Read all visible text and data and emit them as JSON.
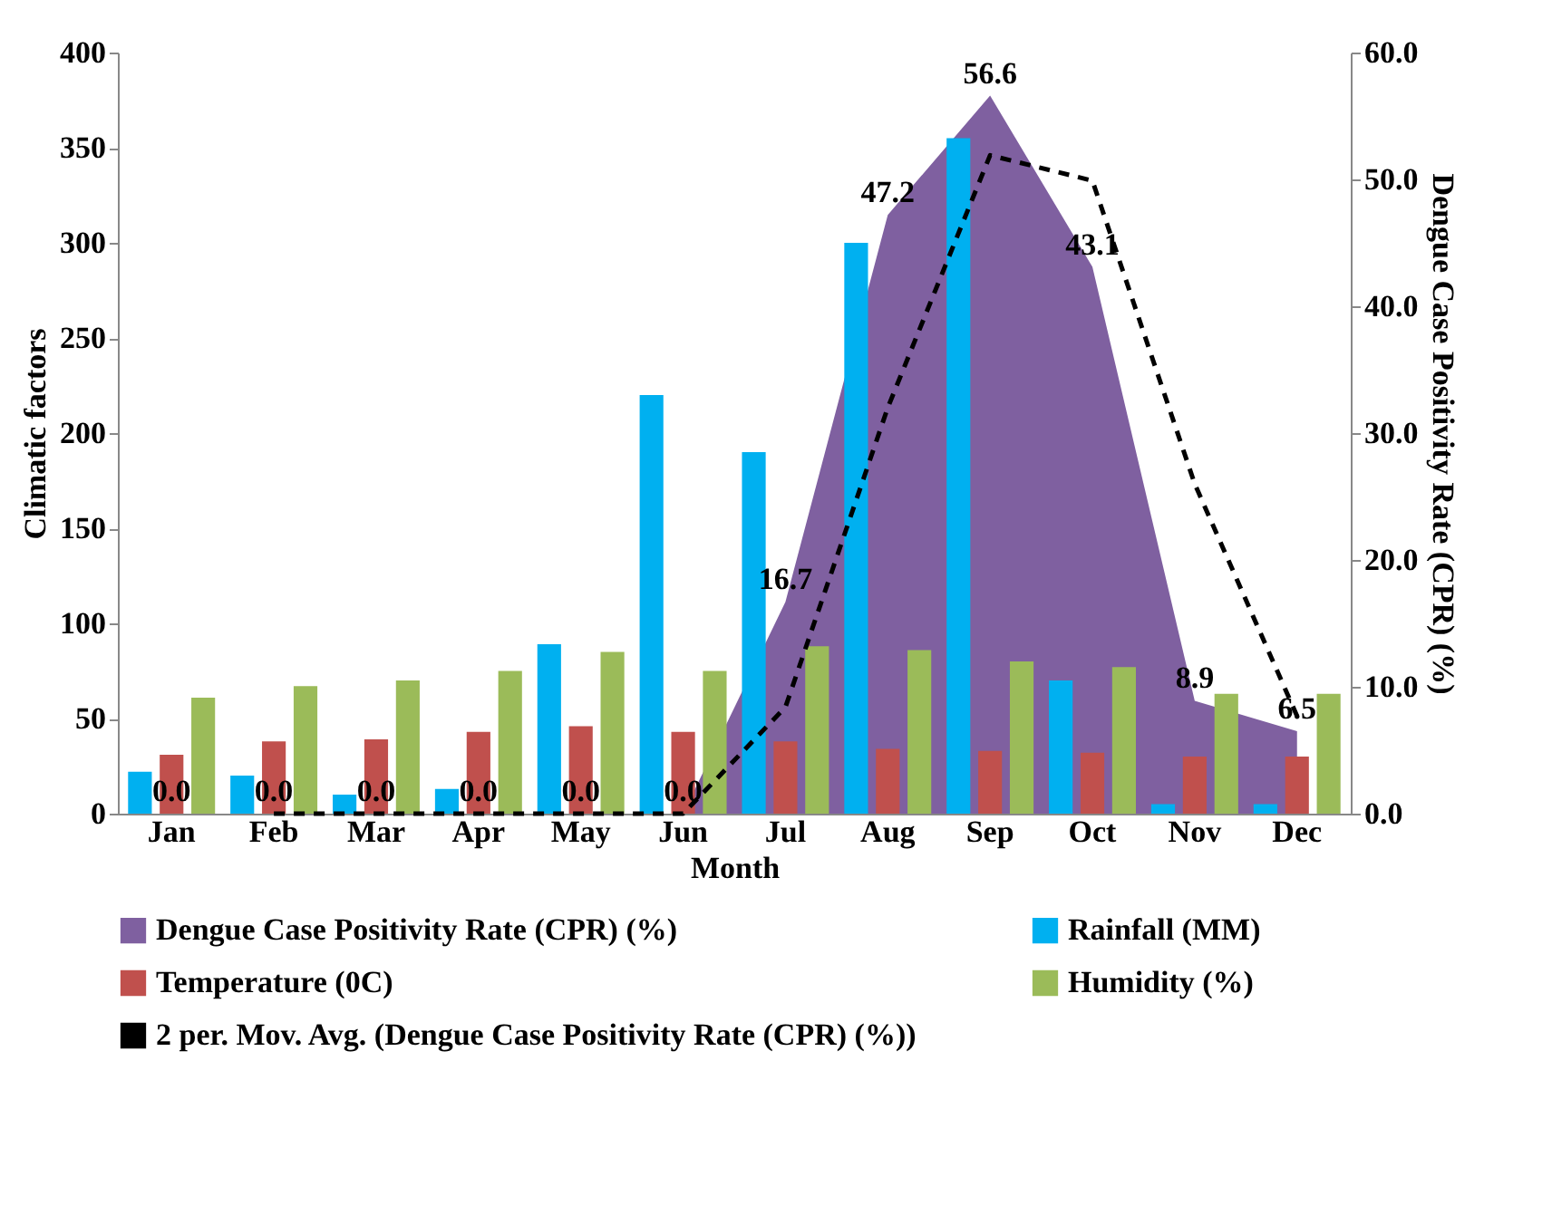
{
  "chart_data": {
    "type": "bar",
    "xlabel": "Month",
    "ylabel": "Climatic factors",
    "y2label": "Dengue Case Positivity Rate (CPR) (%)",
    "categories": [
      "Jan",
      "Feb",
      "Mar",
      "Apr",
      "May",
      "Jun",
      "Jul",
      "Aug",
      "Sep",
      "Oct",
      "Nov",
      "Dec"
    ],
    "series": [
      {
        "name": "Dengue Case Positivity Rate (CPR) (%)",
        "type": "area",
        "axis": "y2",
        "color": "#7f60a0",
        "values": [
          0,
          0,
          0,
          0,
          0,
          0,
          16.7,
          47.2,
          56.6,
          43.1,
          8.9,
          6.5
        ],
        "value_labels": [
          "0.0",
          "0.0",
          "0.0",
          "0.0",
          "0.0",
          "0.0",
          "16.7",
          "47.2",
          "56.6",
          "43.1",
          "8.9",
          "6.5"
        ]
      },
      {
        "name": "Rainfall (MM)",
        "color": "#00b0f0",
        "values": [
          22,
          20,
          10,
          13,
          89,
          220,
          190,
          300,
          355,
          70,
          5,
          5
        ]
      },
      {
        "name": "Temperature (0C)",
        "color": "#c0504d",
        "values": [
          31,
          38,
          39,
          43,
          46,
          43,
          38,
          34,
          33,
          32,
          30,
          30
        ]
      },
      {
        "name": "Humidity (%)",
        "color": "#9bbb59",
        "values": [
          61,
          67,
          70,
          75,
          85,
          75,
          88,
          86,
          80,
          77,
          63,
          63
        ]
      },
      {
        "name": "2 per. Mov. Avg. (Dengue Case Positivity Rate (CPR) (%))",
        "type": "line",
        "axis": "y2",
        "color": "#000000",
        "line_style": "dashed",
        "values": [
          null,
          0,
          0,
          0,
          0,
          0,
          8.4,
          32.0,
          51.9,
          49.9,
          26.0,
          7.7
        ]
      }
    ],
    "ylim": [
      0,
      400
    ],
    "yticks": [
      0,
      50,
      100,
      150,
      200,
      250,
      300,
      350,
      400
    ],
    "y2lim": [
      0,
      60
    ],
    "y2ticks": [
      {
        "value": 0,
        "label": "0.0"
      },
      {
        "value": 10,
        "label": "10.0"
      },
      {
        "value": 20,
        "label": "20.0"
      },
      {
        "value": 30,
        "label": "30.0"
      },
      {
        "value": 40,
        "label": "40.0"
      },
      {
        "value": 50,
        "label": "50.0"
      },
      {
        "value": 60,
        "label": "60.0"
      }
    ],
    "legend": "bottom",
    "grid": false
  }
}
